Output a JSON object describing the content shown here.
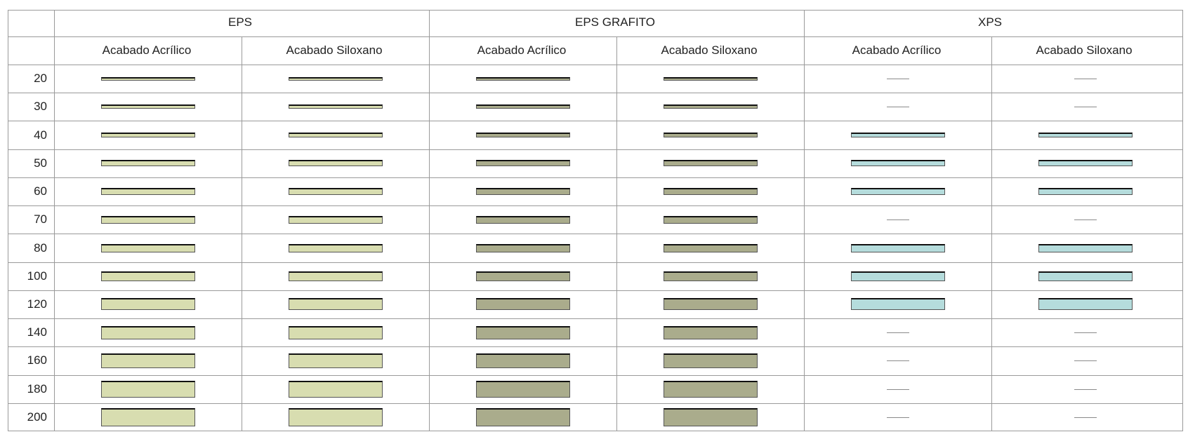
{
  "table": {
    "groups": [
      {
        "label": "EPS",
        "material": "eps"
      },
      {
        "label": "EPS GRAFITO",
        "material": "grafito"
      },
      {
        "label": "XPS",
        "material": "xps"
      }
    ],
    "subheaders": [
      "Acabado Acrílico",
      "Acabado Siloxano",
      "Acabado Acrílico",
      "Acabado Siloxano",
      "Acabado Acrílico",
      "Acabado Siloxano"
    ],
    "thicknesses": [
      "20",
      "30",
      "40",
      "50",
      "60",
      "70",
      "80",
      "100",
      "120",
      "140",
      "160",
      "180",
      "200"
    ],
    "xps_available": [
      "40",
      "50",
      "60",
      "80",
      "100",
      "120"
    ],
    "colors": {
      "eps": "#d8ddb0",
      "grafito": "#aaac8c",
      "xps": "#b5dcdc",
      "grid": "#9a9a9a",
      "dash": "#8a8a8a"
    }
  }
}
